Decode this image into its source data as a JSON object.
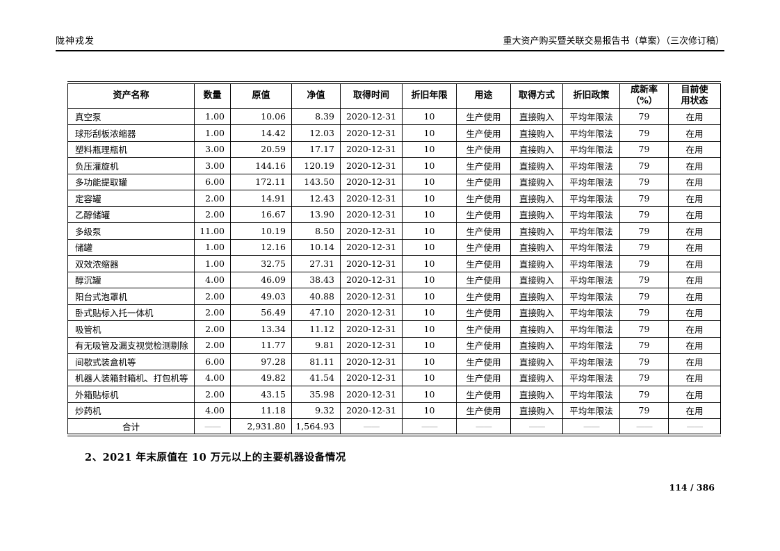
{
  "page_header": {
    "company": "陇神戎发",
    "report_title": "重大资产购买暨关联交易报告书（草案）（三次修订稿）"
  },
  "table": {
    "columns": [
      "资产名称",
      "数量",
      "原值",
      "净值",
      "取得时间",
      "折旧年限",
      "用途",
      "取得方式",
      "折旧政策",
      "成新率\n（%）",
      "目前使\n用状态"
    ],
    "rows": [
      [
        "真空泵",
        "1.00",
        "10.06",
        "8.39",
        "2020-12-31",
        "10",
        "生产使用",
        "直接购入",
        "平均年限法",
        "79",
        "在用"
      ],
      [
        "球形刮板浓缩器",
        "1.00",
        "14.42",
        "12.03",
        "2020-12-31",
        "10",
        "生产使用",
        "直接购入",
        "平均年限法",
        "79",
        "在用"
      ],
      [
        "塑料瓶理瓶机",
        "3.00",
        "20.59",
        "17.17",
        "2020-12-31",
        "10",
        "生产使用",
        "直接购入",
        "平均年限法",
        "79",
        "在用"
      ],
      [
        "负压灌旋机",
        "3.00",
        "144.16",
        "120.19",
        "2020-12-31",
        "10",
        "生产使用",
        "直接购入",
        "平均年限法",
        "79",
        "在用"
      ],
      [
        "多功能提取罐",
        "6.00",
        "172.11",
        "143.50",
        "2020-12-31",
        "10",
        "生产使用",
        "直接购入",
        "平均年限法",
        "79",
        "在用"
      ],
      [
        "定容罐",
        "2.00",
        "14.91",
        "12.43",
        "2020-12-31",
        "10",
        "生产使用",
        "直接购入",
        "平均年限法",
        "79",
        "在用"
      ],
      [
        "乙醇储罐",
        "2.00",
        "16.67",
        "13.90",
        "2020-12-31",
        "10",
        "生产使用",
        "直接购入",
        "平均年限法",
        "79",
        "在用"
      ],
      [
        "多级泵",
        "11.00",
        "10.19",
        "8.50",
        "2020-12-31",
        "10",
        "生产使用",
        "直接购入",
        "平均年限法",
        "79",
        "在用"
      ],
      [
        "储罐",
        "1.00",
        "12.16",
        "10.14",
        "2020-12-31",
        "10",
        "生产使用",
        "直接购入",
        "平均年限法",
        "79",
        "在用"
      ],
      [
        "双效浓缩器",
        "1.00",
        "32.75",
        "27.31",
        "2020-12-31",
        "10",
        "生产使用",
        "直接购入",
        "平均年限法",
        "79",
        "在用"
      ],
      [
        "醇沉罐",
        "4.00",
        "46.09",
        "38.43",
        "2020-12-31",
        "10",
        "生产使用",
        "直接购入",
        "平均年限法",
        "79",
        "在用"
      ],
      [
        "阳台式泡罩机",
        "2.00",
        "49.03",
        "40.88",
        "2020-12-31",
        "10",
        "生产使用",
        "直接购入",
        "平均年限法",
        "79",
        "在用"
      ],
      [
        "卧式贴标入托一体机",
        "2.00",
        "56.49",
        "47.10",
        "2020-12-31",
        "10",
        "生产使用",
        "直接购入",
        "平均年限法",
        "79",
        "在用"
      ],
      [
        "吸管机",
        "2.00",
        "13.34",
        "11.12",
        "2020-12-31",
        "10",
        "生产使用",
        "直接购入",
        "平均年限法",
        "79",
        "在用"
      ],
      [
        "有无吸管及漏支视觉检测剔除",
        "2.00",
        "11.77",
        "9.81",
        "2020-12-31",
        "10",
        "生产使用",
        "直接购入",
        "平均年限法",
        "79",
        "在用"
      ],
      [
        "间歇式装盒机等",
        "6.00",
        "97.28",
        "81.11",
        "2020-12-31",
        "10",
        "生产使用",
        "直接购入",
        "平均年限法",
        "79",
        "在用"
      ],
      [
        "机器人装箱封箱机、打包机等",
        "4.00",
        "49.82",
        "41.54",
        "2020-12-31",
        "10",
        "生产使用",
        "直接购入",
        "平均年限法",
        "79",
        "在用"
      ],
      [
        "外箱贴标机",
        "2.00",
        "43.15",
        "35.98",
        "2020-12-31",
        "10",
        "生产使用",
        "直接购入",
        "平均年限法",
        "79",
        "在用"
      ],
      [
        "炒药机",
        "4.00",
        "11.18",
        "9.32",
        "2020-12-31",
        "10",
        "生产使用",
        "直接购入",
        "平均年限法",
        "79",
        "在用"
      ]
    ],
    "total_row": [
      "合计",
      "——",
      "2,931.80",
      "1,564.93",
      "——",
      "——",
      "——",
      "——",
      "——",
      "——",
      "——"
    ],
    "dash": "——"
  },
  "section_heading": "2、2021 年末原值在 10 万元以上的主要机器设备情况",
  "page_number": "114 / 386",
  "colors": {
    "dash_gray": "#9b9b9b",
    "text": "#000000"
  }
}
